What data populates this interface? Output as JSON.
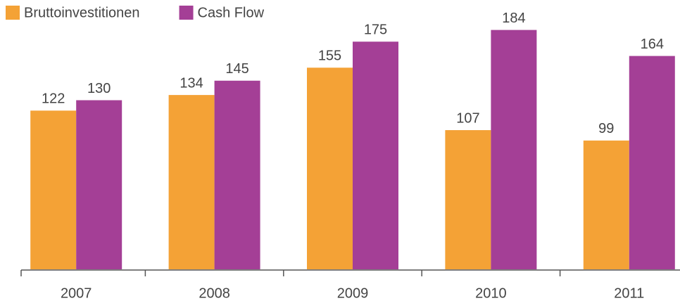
{
  "chart_data": {
    "type": "bar",
    "categories": [
      "2007",
      "2008",
      "2009",
      "2010",
      "2011"
    ],
    "series": [
      {
        "name": "Bruttoinvestitionen",
        "color": "#f4a236",
        "values": [
          122,
          134,
          155,
          107,
          99
        ]
      },
      {
        "name": "Cash Flow",
        "color": "#a43f96",
        "values": [
          130,
          145,
          175,
          184,
          164
        ]
      }
    ],
    "ylim": [
      0,
      200
    ],
    "legend": "top-left"
  }
}
